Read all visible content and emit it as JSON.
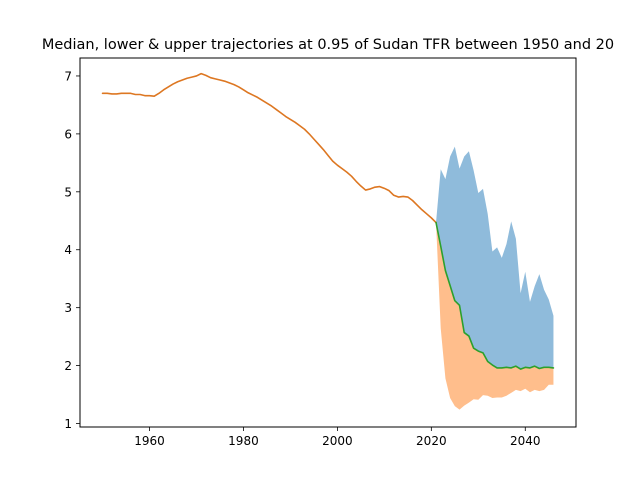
{
  "chart_data": {
    "type": "area",
    "title": "Median, lower & upper trajectories at 0.95 of Sudan TFR between 1950 and 20",
    "xlabel": "",
    "ylabel": "",
    "xlim": [
      1945.2,
      2050.8
    ],
    "ylim": [
      0.94,
      7.31
    ],
    "xticks": [
      1960,
      1980,
      2000,
      2020,
      2040
    ],
    "yticks": [
      1,
      2,
      3,
      4,
      5,
      6,
      7
    ],
    "grid": false,
    "legend": "none",
    "colors": {
      "history": "#dd7722",
      "median": "#2ca02c",
      "upper_band": "#8fbbdb",
      "lower_band": "#ffbe8c"
    },
    "history": {
      "x": [
        1950,
        1951,
        1952,
        1953,
        1954,
        1955,
        1956,
        1957,
        1958,
        1959,
        1960,
        1961,
        1962,
        1963,
        1964,
        1965,
        1966,
        1967,
        1968,
        1969,
        1970,
        1971,
        1972,
        1973,
        1974,
        1975,
        1976,
        1977,
        1978,
        1979,
        1980,
        1981,
        1982,
        1983,
        1984,
        1985,
        1986,
        1987,
        1988,
        1989,
        1990,
        1991,
        1992,
        1993,
        1994,
        1995,
        1996,
        1997,
        1998,
        1999,
        2000,
        2001,
        2002,
        2003,
        2004,
        2005,
        2006,
        2007,
        2008,
        2009,
        2010,
        2011,
        2012,
        2013,
        2014,
        2015,
        2016,
        2017,
        2018,
        2019,
        2020,
        2021
      ],
      "y": [
        6.7,
        6.7,
        6.69,
        6.69,
        6.7,
        6.7,
        6.7,
        6.68,
        6.68,
        6.66,
        6.66,
        6.65,
        6.7,
        6.76,
        6.81,
        6.86,
        6.9,
        6.93,
        6.96,
        6.98,
        7.0,
        7.04,
        7.01,
        6.97,
        6.95,
        6.93,
        6.91,
        6.88,
        6.85,
        6.81,
        6.76,
        6.71,
        6.67,
        6.63,
        6.58,
        6.53,
        6.48,
        6.42,
        6.36,
        6.3,
        6.25,
        6.2,
        6.14,
        6.08,
        6.0,
        5.91,
        5.82,
        5.73,
        5.63,
        5.53,
        5.46,
        5.4,
        5.34,
        5.27,
        5.18,
        5.1,
        5.03,
        5.05,
        5.08,
        5.09,
        5.06,
        5.02,
        4.94,
        4.91,
        4.92,
        4.91,
        4.85,
        4.77,
        4.69,
        4.62,
        4.55,
        4.47
      ]
    },
    "median": {
      "x": [
        2021,
        2022,
        2023,
        2024,
        2025,
        2026,
        2027,
        2028,
        2029,
        2030,
        2031,
        2032,
        2033,
        2034,
        2035,
        2036,
        2037,
        2038,
        2039,
        2040,
        2041,
        2042,
        2043,
        2044,
        2045,
        2046
      ],
      "y": [
        4.47,
        4.06,
        3.64,
        3.38,
        3.12,
        3.04,
        2.57,
        2.51,
        2.3,
        2.25,
        2.22,
        2.07,
        2.01,
        1.96,
        1.96,
        1.97,
        1.96,
        1.99,
        1.94,
        1.97,
        1.96,
        1.99,
        1.95,
        1.97,
        1.97,
        1.96
      ]
    },
    "upper_band": {
      "x": [
        2021,
        2022,
        2023,
        2024,
        2025,
        2026,
        2027,
        2028,
        2029,
        2030,
        2031,
        2032,
        2033,
        2034,
        2035,
        2036,
        2037,
        2038,
        2039,
        2040,
        2041,
        2042,
        2043,
        2044,
        2045,
        2046
      ],
      "y": [
        4.47,
        5.39,
        5.22,
        5.61,
        5.78,
        5.4,
        5.61,
        5.7,
        5.37,
        4.98,
        5.05,
        4.62,
        3.97,
        4.04,
        3.86,
        4.1,
        4.49,
        4.19,
        3.25,
        3.62,
        3.1,
        3.37,
        3.58,
        3.31,
        3.14,
        2.86
      ]
    },
    "lower_band": {
      "x": [
        2021,
        2022,
        2023,
        2024,
        2025,
        2026,
        2027,
        2028,
        2029,
        2030,
        2031,
        2032,
        2033,
        2034,
        2035,
        2036,
        2037,
        2038,
        2039,
        2040,
        2041,
        2042,
        2043,
        2044,
        2045,
        2046
      ],
      "y": [
        4.47,
        2.64,
        1.78,
        1.44,
        1.3,
        1.24,
        1.31,
        1.36,
        1.42,
        1.41,
        1.49,
        1.48,
        1.44,
        1.45,
        1.45,
        1.48,
        1.53,
        1.58,
        1.56,
        1.6,
        1.54,
        1.58,
        1.56,
        1.58,
        1.67,
        1.67
      ]
    }
  }
}
